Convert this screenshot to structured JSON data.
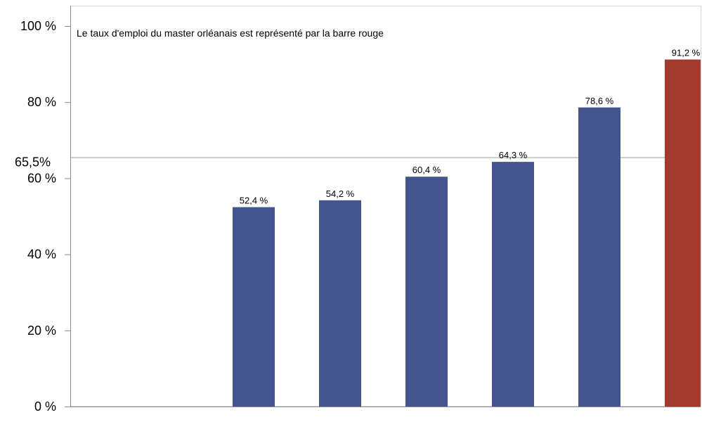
{
  "chart_data": {
    "type": "bar",
    "annotation": "Le taux d'emploi du master orléanais est représenté par la barre rouge",
    "ylim": [
      0,
      100
    ],
    "yticks": [
      {
        "value": 0,
        "label": "0 %"
      },
      {
        "value": 20,
        "label": "20 %"
      },
      {
        "value": 40,
        "label": "40 %"
      },
      {
        "value": 60,
        "label": "60 %"
      },
      {
        "value": 80,
        "label": "80 %"
      },
      {
        "value": 100,
        "label": "100 %"
      }
    ],
    "reference_line": {
      "value": 65.5,
      "label": "65,5%"
    },
    "grid": false,
    "values": [
      null,
      null,
      52.4,
      54.2,
      60.4,
      64.3,
      78.6,
      91.2
    ],
    "value_labels": [
      "",
      "",
      "52,4 %",
      "54,2 %",
      "60,4 %",
      "64,3 %",
      "78,6 %",
      "91,2 %"
    ],
    "highlight_index": 7,
    "colors": {
      "bar": "#44548f",
      "highlight": "#a23b2e",
      "axis": "#8c8c8c",
      "frame": "#d9d9e6",
      "reference_line": "#9c9c9c"
    }
  }
}
